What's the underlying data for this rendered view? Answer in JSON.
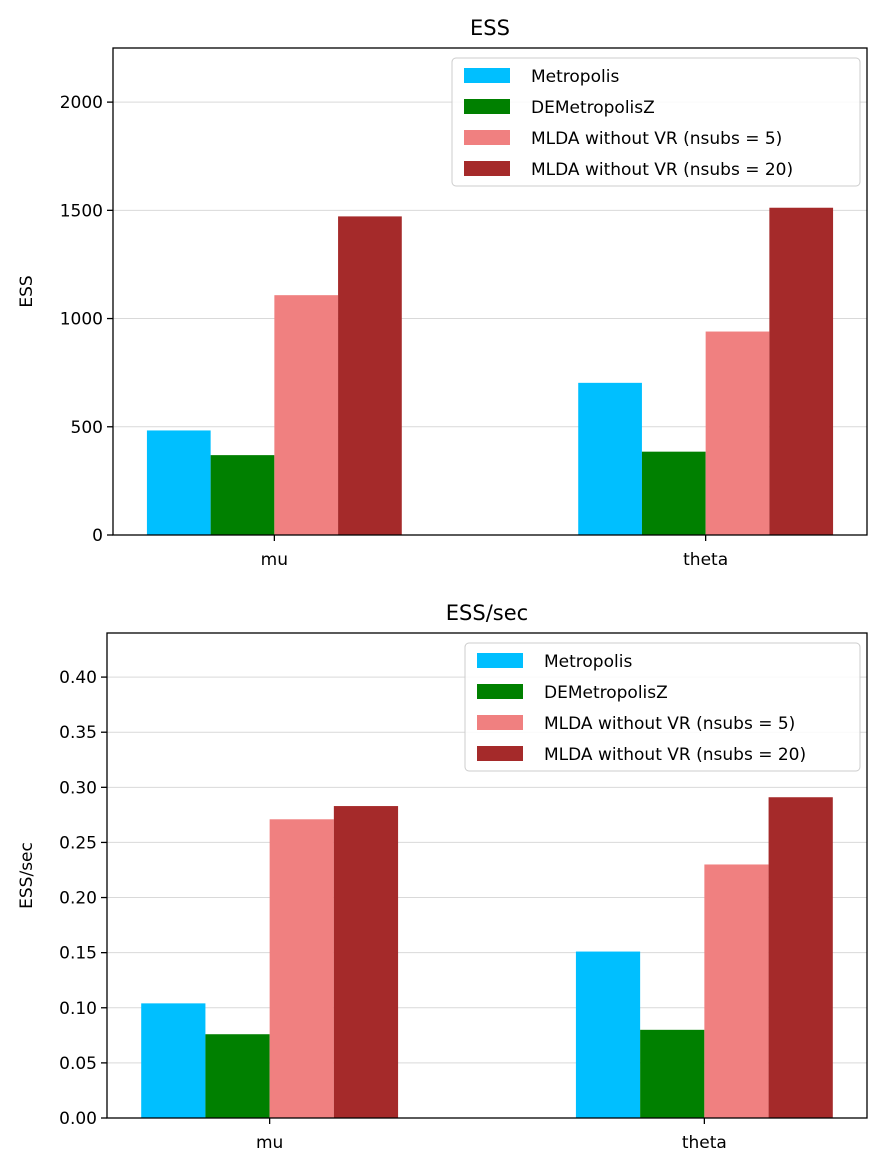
{
  "colors": {
    "Metropolis": "#00bfff",
    "DEMetropolisZ": "#008000",
    "MLDA without VR (nsubs = 5)": "#f08080",
    "MLDA without VR (nsubs = 20)": "#a52a2a"
  },
  "chart_data": [
    {
      "type": "bar",
      "title": "ESS",
      "xlabel": "",
      "ylabel": "ESS",
      "categories": [
        "mu",
        "theta"
      ],
      "ylim": [
        0,
        2250
      ],
      "yticks": [
        0,
        500,
        1000,
        1500,
        2000
      ],
      "ytick_labels": [
        "0",
        "500",
        "1000",
        "1500",
        "2000"
      ],
      "grid": "horizontal",
      "legend_position": "upper-right",
      "series": [
        {
          "name": "Metropolis",
          "values": [
            483,
            703
          ]
        },
        {
          "name": "DEMetropolisZ",
          "values": [
            369,
            385
          ]
        },
        {
          "name": "MLDA without VR (nsubs = 5)",
          "values": [
            1108,
            940
          ]
        },
        {
          "name": "MLDA without VR (nsubs = 20)",
          "values": [
            1472,
            1512
          ]
        }
      ]
    },
    {
      "type": "bar",
      "title": "ESS/sec",
      "xlabel": "",
      "ylabel": "ESS/sec",
      "categories": [
        "mu",
        "theta"
      ],
      "ylim": [
        0,
        0.44
      ],
      "yticks": [
        0,
        0.05,
        0.1,
        0.15,
        0.2,
        0.25,
        0.3,
        0.35,
        0.4
      ],
      "ytick_labels": [
        "0.00",
        "0.05",
        "0.10",
        "0.15",
        "0.20",
        "0.25",
        "0.30",
        "0.35",
        "0.40"
      ],
      "grid": "horizontal",
      "legend_position": "upper-right",
      "series": [
        {
          "name": "Metropolis",
          "values": [
            0.104,
            0.151
          ]
        },
        {
          "name": "DEMetropolisZ",
          "values": [
            0.076,
            0.08
          ]
        },
        {
          "name": "MLDA without VR (nsubs = 5)",
          "values": [
            0.271,
            0.23
          ]
        },
        {
          "name": "MLDA without VR (nsubs = 20)",
          "values": [
            0.283,
            0.291
          ]
        }
      ]
    }
  ]
}
